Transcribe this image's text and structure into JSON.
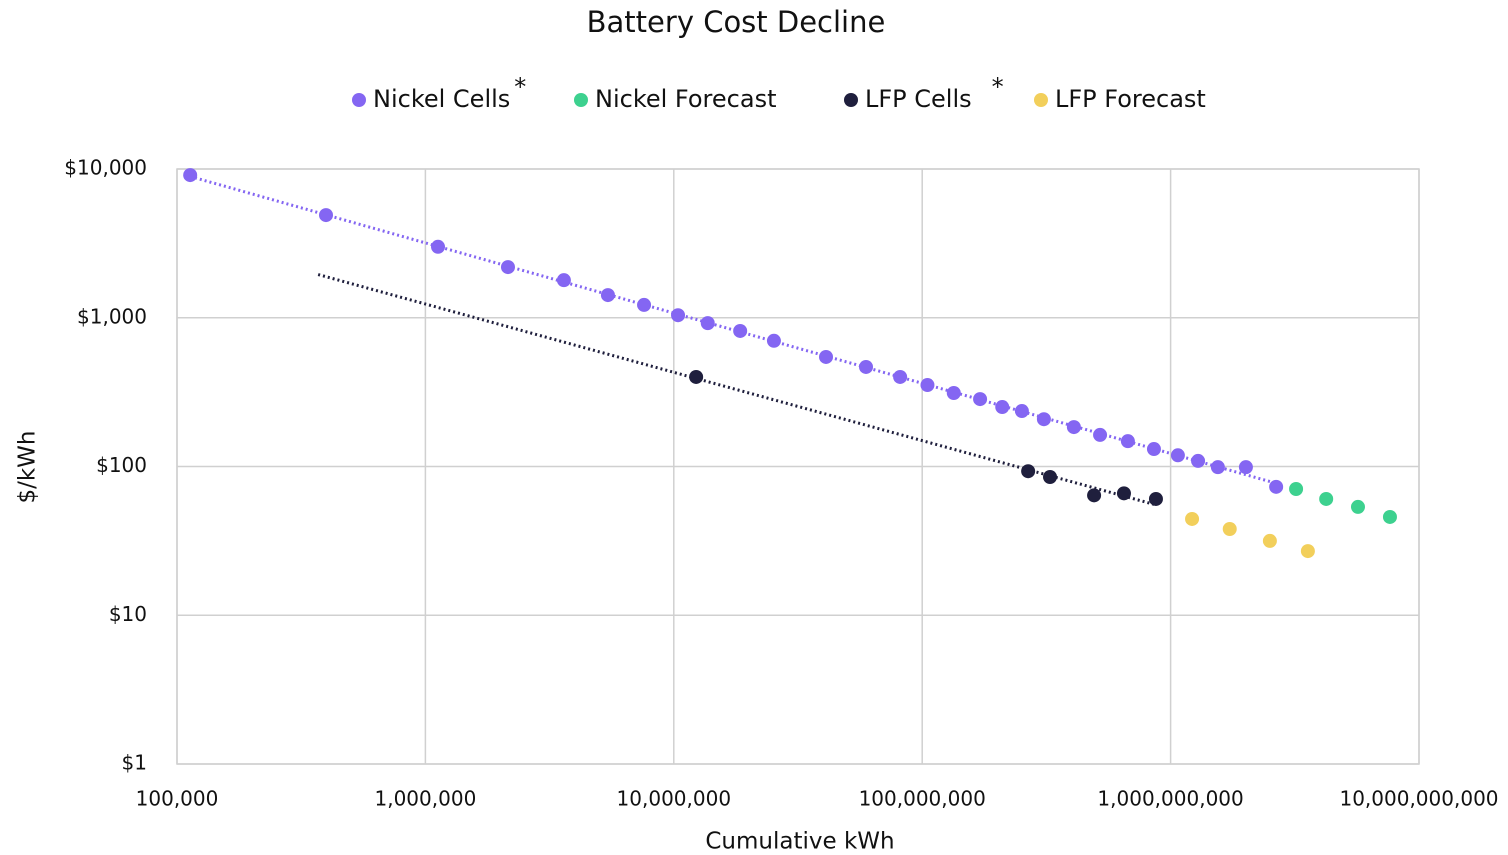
{
  "chart_data": {
    "type": "scatter",
    "title": "Battery Cost Decline",
    "xlabel": "Cumulative kWh",
    "ylabel": "$/kWh",
    "xscale": "log",
    "yscale": "log",
    "grid": true,
    "legend": "top",
    "xlim": [
      100000,
      10000000000
    ],
    "ylim": [
      1,
      10000
    ],
    "xticks": [
      {
        "value": 100000,
        "label": "100,000"
      },
      {
        "value": 1000000,
        "label": "1,000,000"
      },
      {
        "value": 10000000,
        "label": "10,000,000"
      },
      {
        "value": 100000000,
        "label": "100,000,000"
      },
      {
        "value": 1000000000,
        "label": "1,000,000,000"
      },
      {
        "value": 10000000000,
        "label": "10,000,000,000"
      }
    ],
    "yticks": [
      {
        "value": 1,
        "label": "$1"
      },
      {
        "value": 10,
        "label": "$10"
      },
      {
        "value": 100,
        "label": "$100"
      },
      {
        "value": 1000,
        "label": "$1,000"
      },
      {
        "value": 10000,
        "label": "$10,000"
      }
    ],
    "series": [
      {
        "name": "Nickel Cells",
        "name_suffix": "*",
        "color": "#8466f2",
        "trendline": [
          113000,
          2660000000
        ],
        "x": [
          113000,
          398000,
          1124000,
          2150000,
          3610000,
          5430000,
          7590000,
          10400000,
          13700000,
          18500000,
          25300000,
          41000000,
          59400000,
          81500000,
          105000000,
          134000000,
          171000000,
          210000000,
          252000000,
          309000000,
          408000000,
          520000000,
          673000000,
          857000000,
          1070000000,
          1290000000,
          1550000000,
          2010000000,
          2660000000
        ],
        "values": [
          9100,
          4900,
          3000,
          2190,
          1790,
          1420,
          1220,
          1040,
          920,
          815,
          700,
          545,
          467,
          400,
          353,
          312,
          284,
          251,
          236,
          208,
          184,
          163,
          148,
          131,
          119,
          109,
          99,
          99,
          73
        ]
      },
      {
        "name": "Nickel Forecast",
        "color": "#3dd18f",
        "x": [
          3200000000,
          4230000000,
          5680000000,
          7640000000
        ],
        "values": [
          70.6,
          60.5,
          53.5,
          45.8
        ]
      },
      {
        "name": "LFP Cells",
        "name_suffix": "*",
        "color": "#1f1f3d",
        "trendline": [
          370000,
          873000000
        ],
        "x": [
          12300000,
          267000000,
          327000000,
          492000000,
          649000000,
          873000000
        ],
        "values": [
          400,
          93,
          85,
          64,
          66,
          60.5
        ]
      },
      {
        "name": "LFP Forecast",
        "color": "#f2cf5b",
        "x": [
          1220000000,
          1730000000,
          2510000000,
          3570000000
        ],
        "values": [
          44.4,
          38,
          31.6,
          27
        ]
      }
    ]
  }
}
